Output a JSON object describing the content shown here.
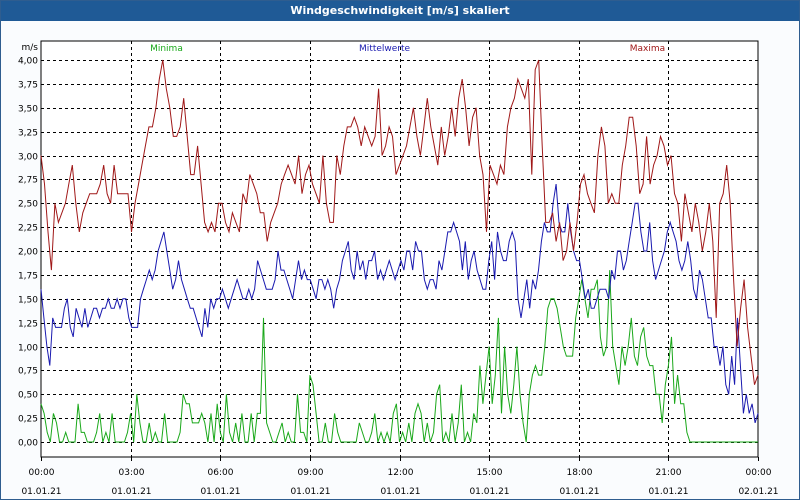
{
  "window": {
    "title": "Windgeschwindigkeit [m/s] skaliert"
  },
  "colors": {
    "minima": "#1aa81a",
    "mittelwerte": "#1a1ab0",
    "maxima": "#a01818",
    "grid": "#000000",
    "background": "#ffffff"
  },
  "chart_data": {
    "type": "line",
    "title": "Windgeschwindigkeit [m/s] skaliert",
    "ylabel": "m/s",
    "ylim": [
      0,
      4.0
    ],
    "y_ticks": [
      "0,00",
      "0,25",
      "0,50",
      "0,75",
      "1,00",
      "1,25",
      "1,50",
      "1,75",
      "2,00",
      "2,25",
      "2,50",
      "2,75",
      "3,00",
      "3,25",
      "3,50",
      "3,75",
      "4,00"
    ],
    "xlim": [
      0,
      24
    ],
    "x_ticks": [
      {
        "time": "00:00",
        "date": "01.01.21"
      },
      {
        "time": "03:00",
        "date": "01.01.21"
      },
      {
        "time": "06:00",
        "date": "01.01.21"
      },
      {
        "time": "09:00",
        "date": "01.01.21"
      },
      {
        "time": "12:00",
        "date": "01.01.21"
      },
      {
        "time": "15:00",
        "date": "01.01.21"
      },
      {
        "time": "18:00",
        "date": "01.01.21"
      },
      {
        "time": "21:00",
        "date": "01.01.21"
      },
      {
        "time": "00:00",
        "date": "02.01.21"
      }
    ],
    "grid": true,
    "series": [
      {
        "name": "Minima",
        "color": "#1aa81a",
        "values": [
          0.4,
          0.3,
          0.1,
          0.0,
          0.3,
          0.2,
          0.0,
          0.0,
          0.1,
          0.0,
          0.0,
          0.0,
          0.4,
          0.1,
          0.1,
          0.0,
          0.0,
          0.0,
          0.1,
          0.3,
          0.0,
          0.1,
          0.0,
          0.3,
          0.0,
          0.0,
          0.0,
          0.0,
          0.1,
          0.3,
          0.0,
          0.5,
          0.2,
          0.0,
          0.0,
          0.2,
          0.0,
          0.1,
          0.0,
          0.0,
          0.3,
          0.0,
          0.0,
          0.0,
          0.0,
          0.1,
          0.5,
          0.4,
          0.4,
          0.2,
          0.2,
          0.2,
          0.3,
          0.2,
          0.0,
          0.3,
          0.0,
          0.4,
          0.1,
          0.0,
          0.5,
          0.1,
          0.0,
          0.2,
          0.0,
          0.3,
          0.0,
          0.0,
          0.3,
          0.0,
          0.3,
          0.3,
          1.3,
          0.2,
          0.1,
          0.0,
          0.0,
          0.1,
          0.2,
          0.0,
          0.1,
          0.0,
          0.0,
          0.5,
          0.1,
          0.1,
          0.0,
          0.7,
          0.6,
          0.3,
          0.0,
          0.0,
          0.2,
          0.0,
          0.0,
          0.3,
          0.1,
          0.0,
          0.0,
          0.0,
          0.0,
          0.0,
          0.0,
          0.2,
          0.1,
          0.0,
          0.0,
          0.1,
          0.3,
          0.0,
          0.1,
          0.0,
          0.1,
          0.0,
          0.3,
          0.4,
          0.0,
          0.1,
          0.0,
          0.2,
          0.0,
          0.3,
          0.4,
          0.3,
          0.0,
          0.2,
          0.0,
          0.1,
          0.5,
          0.6,
          0.0,
          0.1,
          0.0,
          0.3,
          0.0,
          0.2,
          0.6,
          0.0,
          0.1,
          0.0,
          0.3,
          0.2,
          0.8,
          0.4,
          0.7,
          1.0,
          0.4,
          0.7,
          1.3,
          0.3,
          1.0,
          0.5,
          0.3,
          0.6,
          1.0,
          0.5,
          0.2,
          0.0,
          0.5,
          0.7,
          0.8,
          0.7,
          0.7,
          1.0,
          1.4,
          1.5,
          1.5,
          1.4,
          1.2,
          1.0,
          0.9,
          0.9,
          0.9,
          1.3,
          1.5,
          1.7,
          1.5,
          1.3,
          1.6,
          1.6,
          1.7,
          1.1,
          0.9,
          1.0,
          1.8,
          1.0,
          0.8,
          0.6,
          1.0,
          0.8,
          1.0,
          1.3,
          0.9,
          0.8,
          1.1,
          1.2,
          0.9,
          0.8,
          0.8,
          0.5,
          0.5,
          0.2,
          0.6,
          0.8,
          1.1,
          0.4,
          0.7,
          0.4,
          0.4,
          0.1,
          0.0,
          0.0,
          0.0,
          0.0,
          0.0,
          0.0,
          0.0,
          0.0,
          0.0,
          0.0,
          0.0,
          0.0,
          0.0,
          0.0,
          0.0,
          0.0,
          0.0,
          0.0,
          0.0,
          0.0,
          0.0,
          0.0,
          0.0
        ]
      },
      {
        "name": "Mittelwerte",
        "color": "#1a1ab0",
        "values": [
          1.6,
          1.3,
          1.0,
          0.8,
          1.3,
          1.2,
          1.2,
          1.2,
          1.4,
          1.5,
          1.2,
          1.1,
          1.4,
          1.3,
          1.2,
          1.4,
          1.2,
          1.3,
          1.4,
          1.4,
          1.3,
          1.4,
          1.4,
          1.5,
          1.4,
          1.4,
          1.5,
          1.4,
          1.5,
          1.5,
          1.3,
          1.2,
          1.2,
          1.2,
          1.5,
          1.6,
          1.7,
          1.8,
          1.7,
          1.8,
          2.0,
          2.1,
          2.2,
          2.0,
          1.8,
          1.6,
          1.7,
          1.9,
          1.7,
          1.6,
          1.5,
          1.4,
          1.4,
          1.3,
          1.2,
          1.1,
          1.4,
          1.2,
          1.5,
          1.4,
          1.5,
          1.5,
          1.6,
          1.5,
          1.4,
          1.5,
          1.6,
          1.7,
          1.6,
          1.5,
          1.5,
          1.6,
          1.5,
          1.6,
          1.9,
          1.8,
          1.7,
          1.6,
          1.6,
          1.6,
          1.7,
          2.0,
          1.8,
          1.8,
          1.7,
          1.6,
          1.5,
          1.7,
          1.9,
          1.7,
          1.8,
          1.7,
          1.7,
          1.6,
          1.5,
          1.7,
          1.7,
          1.6,
          1.7,
          1.6,
          1.4,
          1.6,
          1.7,
          1.9,
          2.0,
          2.1,
          1.8,
          1.7,
          2.0,
          1.8,
          1.9,
          1.7,
          1.9,
          1.9,
          2.0,
          1.7,
          1.8,
          1.7,
          1.8,
          1.9,
          1.8,
          1.7,
          1.8,
          1.9,
          1.8,
          2.0,
          2.0,
          1.8,
          2.1,
          2.0,
          2.0,
          1.7,
          1.6,
          1.7,
          1.7,
          1.6,
          1.9,
          1.8,
          2.0,
          2.2,
          2.2,
          2.3,
          2.2,
          2.1,
          1.8,
          2.1,
          1.7,
          1.9,
          2.0,
          1.8,
          1.7,
          1.6,
          1.6,
          1.9,
          2.1,
          1.7,
          2.2,
          2.0,
          1.9,
          1.9,
          2.1,
          2.2,
          2.1,
          1.5,
          1.3,
          1.5,
          1.7,
          1.4,
          1.7,
          1.6,
          1.8,
          2.1,
          2.3,
          2.2,
          2.2,
          2.5,
          2.7,
          2.3,
          2.2,
          2.2,
          2.5,
          2.2,
          2.0,
          1.9,
          1.9,
          1.7,
          1.5,
          1.6,
          1.4,
          1.4,
          1.5,
          1.6,
          1.6,
          1.6,
          1.5,
          1.8,
          1.7,
          2.0,
          2.0,
          1.8,
          1.9,
          2.1,
          2.3,
          2.5,
          2.5,
          2.2,
          2.0,
          2.0,
          2.3,
          1.9,
          1.7,
          1.8,
          1.9,
          2.0,
          2.2,
          2.3,
          2.2,
          2.1,
          1.9,
          1.8,
          1.9,
          2.1,
          1.9,
          1.6,
          1.5,
          1.8,
          1.7,
          1.5,
          1.3,
          1.3,
          1.0,
          1.0,
          0.8,
          1.0,
          0.6,
          0.5,
          0.9,
          0.6,
          1.3,
          0.8,
          0.3,
          0.5,
          0.3,
          0.4,
          0.2,
          0.3
        ]
      },
      {
        "name": "Maxima",
        "color": "#a01818",
        "values": [
          3.0,
          2.7,
          2.2,
          1.8,
          2.5,
          2.3,
          2.4,
          2.5,
          2.7,
          2.9,
          2.5,
          2.2,
          2.4,
          2.5,
          2.6,
          2.6,
          2.6,
          2.7,
          2.9,
          2.6,
          2.5,
          2.9,
          2.6,
          2.6,
          2.6,
          2.6,
          2.2,
          2.5,
          2.7,
          2.9,
          3.1,
          3.3,
          3.3,
          3.5,
          3.8,
          4.0,
          3.7,
          3.5,
          3.2,
          3.2,
          3.3,
          3.6,
          3.2,
          2.8,
          2.8,
          3.1,
          2.7,
          2.3,
          2.2,
          2.3,
          2.2,
          2.5,
          2.5,
          2.3,
          2.2,
          2.4,
          2.3,
          2.2,
          2.6,
          2.5,
          2.8,
          2.7,
          2.6,
          2.4,
          2.4,
          2.1,
          2.3,
          2.4,
          2.5,
          2.7,
          2.8,
          2.9,
          2.8,
          2.7,
          3.0,
          2.6,
          2.8,
          2.9,
          2.7,
          2.6,
          2.5,
          3.0,
          2.5,
          2.3,
          2.3,
          3.0,
          2.8,
          3.1,
          3.3,
          3.3,
          3.4,
          3.3,
          3.1,
          3.3,
          3.2,
          3.1,
          3.2,
          3.7,
          3.0,
          3.1,
          3.3,
          3.2,
          2.8,
          2.9,
          3.0,
          3.1,
          3.3,
          3.5,
          3.2,
          3.0,
          3.3,
          3.6,
          3.3,
          3.1,
          2.9,
          3.3,
          3.0,
          3.2,
          3.5,
          3.2,
          3.6,
          3.8,
          3.5,
          3.1,
          3.4,
          3.5,
          3.0,
          2.8,
          2.2,
          2.9,
          2.8,
          2.7,
          2.9,
          2.8,
          3.3,
          3.5,
          3.6,
          3.8,
          3.7,
          3.6,
          3.8,
          2.8,
          3.9,
          4.0,
          3.1,
          2.3,
          2.3,
          2.4,
          2.1,
          2.3,
          1.9,
          2.0,
          2.3,
          2.0,
          2.3,
          2.7,
          2.8,
          2.6,
          2.5,
          2.4,
          3.0,
          3.3,
          3.1,
          2.5,
          2.6,
          2.5,
          2.5,
          2.9,
          3.1,
          3.4,
          3.4,
          3.1,
          2.6,
          2.7,
          3.2,
          2.7,
          2.9,
          3.0,
          3.2,
          3.1,
          2.9,
          3.0,
          2.6,
          2.5,
          2.1,
          2.6,
          2.4,
          2.2,
          2.5,
          2.3,
          2.0,
          2.2,
          2.5,
          2.1,
          1.3,
          2.5,
          2.6,
          2.9,
          2.5,
          1.7,
          1.0,
          1.4,
          1.7,
          1.2,
          0.9,
          0.6,
          0.7
        ]
      }
    ]
  }
}
